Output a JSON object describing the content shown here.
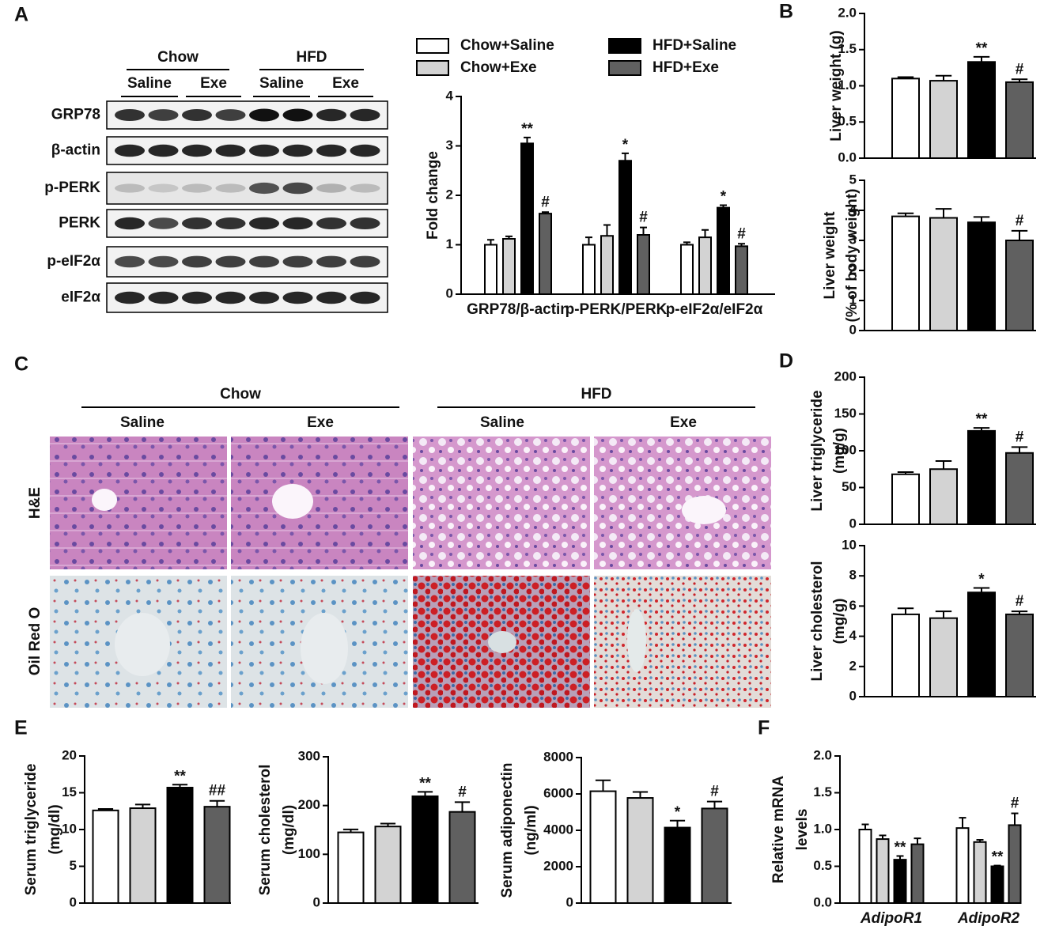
{
  "figure": {
    "panel_labels": [
      "A",
      "B",
      "C",
      "D",
      "E",
      "F"
    ],
    "blot": {
      "groups": [
        "Chow",
        "HFD"
      ],
      "treatments": [
        "Saline",
        "Exe",
        "Saline",
        "Exe"
      ],
      "rows": [
        "GRP78",
        "β-actin",
        "p-PERK",
        "PERK",
        "p-eIF2α",
        "eIF2α"
      ]
    },
    "histology": {
      "groups": [
        "Chow",
        "HFD"
      ],
      "treatments": [
        "Saline",
        "Exe",
        "Saline",
        "Exe"
      ],
      "stains": [
        "H&E",
        "Oil Red O"
      ]
    }
  },
  "chart_data": [
    {
      "type": "bar",
      "ylabel": "Fold change",
      "ylim": [
        0,
        4
      ],
      "yticks": [
        0,
        1,
        2,
        3,
        4
      ],
      "categories": [
        "GRP78/β-actin",
        "p-PERK/PERK",
        "p-eIF2α/eIF2α"
      ],
      "series": [
        {
          "name": "Chow+Saline",
          "color": "#ffffff",
          "values": [
            1.0,
            1.0,
            1.0
          ],
          "errors": [
            0.1,
            0.15,
            0.05
          ]
        },
        {
          "name": "Chow+Exe",
          "color": "#d3d3d3",
          "values": [
            1.12,
            1.18,
            1.15
          ],
          "errors": [
            0.05,
            0.22,
            0.15
          ]
        },
        {
          "name": "HFD+Saline",
          "color": "#000000",
          "values": [
            3.05,
            2.7,
            1.75
          ],
          "errors": [
            0.12,
            0.15,
            0.05
          ],
          "marks": [
            "**",
            "*",
            "*"
          ]
        },
        {
          "name": "HFD+Exe",
          "color": "#606060",
          "values": [
            1.63,
            1.2,
            0.97
          ],
          "errors": [
            0.03,
            0.15,
            0.05
          ],
          "marks": [
            "#",
            "#",
            "#"
          ]
        }
      ]
    },
    {
      "type": "bar",
      "ylabel": "Liver weight (g)",
      "ylim": [
        0,
        2
      ],
      "yticks": [
        {
          "value": 0,
          "label": "0.0"
        },
        {
          "value": 0.5,
          "label": "0.5"
        },
        {
          "value": 1,
          "label": "1.0"
        },
        {
          "value": 1.5,
          "label": "1.5"
        },
        {
          "value": 2,
          "label": "2.0"
        }
      ],
      "categories": [
        null
      ],
      "series": [
        {
          "color": "#ffffff",
          "values": [
            1.1
          ],
          "errors": [
            0.02
          ]
        },
        {
          "color": "#d3d3d3",
          "values": [
            1.07
          ],
          "errors": [
            0.07
          ]
        },
        {
          "color": "#000000",
          "values": [
            1.33
          ],
          "errors": [
            0.07
          ],
          "marks": [
            "**"
          ]
        },
        {
          "color": "#606060",
          "values": [
            1.05
          ],
          "errors": [
            0.04
          ],
          "marks": [
            "#"
          ]
        }
      ]
    },
    {
      "type": "bar",
      "ylabel": [
        "Liver weight",
        "(% of body weight)"
      ],
      "ylim": [
        0,
        5
      ],
      "yticks": [
        0,
        1,
        2,
        3,
        4,
        5
      ],
      "categories": [
        null
      ],
      "series": [
        {
          "color": "#ffffff",
          "values": [
            3.8
          ],
          "errors": [
            0.1
          ]
        },
        {
          "color": "#d3d3d3",
          "values": [
            3.75
          ],
          "errors": [
            0.3
          ]
        },
        {
          "color": "#000000",
          "values": [
            3.6
          ],
          "errors": [
            0.18
          ]
        },
        {
          "color": "#606060",
          "values": [
            3.0
          ],
          "errors": [
            0.32
          ],
          "marks": [
            "#"
          ]
        }
      ]
    },
    {
      "type": "bar",
      "ylabel": [
        "Liver triglyceride",
        "(mg/g)"
      ],
      "ylim": [
        0,
        200
      ],
      "yticks": [
        0,
        50,
        100,
        150,
        200
      ],
      "categories": [
        null
      ],
      "series": [
        {
          "color": "#ffffff",
          "values": [
            68
          ],
          "errors": [
            3
          ]
        },
        {
          "color": "#d3d3d3",
          "values": [
            75
          ],
          "errors": [
            11
          ]
        },
        {
          "color": "#000000",
          "values": [
            127
          ],
          "errors": [
            4
          ],
          "marks": [
            "**"
          ]
        },
        {
          "color": "#606060",
          "values": [
            97
          ],
          "errors": [
            8
          ],
          "marks": [
            "#"
          ]
        }
      ]
    },
    {
      "type": "bar",
      "ylabel": [
        "Liver cholesterol",
        "(mg/g)"
      ],
      "ylim": [
        0,
        10
      ],
      "yticks": [
        0,
        2,
        4,
        6,
        8,
        10
      ],
      "categories": [
        null
      ],
      "series": [
        {
          "color": "#ffffff",
          "values": [
            5.45
          ],
          "errors": [
            0.4
          ]
        },
        {
          "color": "#d3d3d3",
          "values": [
            5.2
          ],
          "errors": [
            0.45
          ]
        },
        {
          "color": "#000000",
          "values": [
            6.9
          ],
          "errors": [
            0.3
          ],
          "marks": [
            "*"
          ]
        },
        {
          "color": "#606060",
          "values": [
            5.45
          ],
          "errors": [
            0.2
          ],
          "marks": [
            "#"
          ]
        }
      ]
    },
    {
      "type": "bar",
      "ylabel": [
        "Serum triglyceride",
        "(mg/dl)"
      ],
      "ylim": [
        0,
        20
      ],
      "yticks": [
        0,
        5,
        10,
        15,
        20
      ],
      "categories": [
        null
      ],
      "series": [
        {
          "color": "#ffffff",
          "values": [
            12.6
          ],
          "errors": [
            0.2
          ]
        },
        {
          "color": "#d3d3d3",
          "values": [
            12.9
          ],
          "errors": [
            0.5
          ]
        },
        {
          "color": "#000000",
          "values": [
            15.7
          ],
          "errors": [
            0.4
          ],
          "marks": [
            "**"
          ]
        },
        {
          "color": "#606060",
          "values": [
            13.1
          ],
          "errors": [
            0.8
          ],
          "marks": [
            "##"
          ]
        }
      ]
    },
    {
      "type": "bar",
      "ylabel": [
        "Serum cholesterol",
        "(mg/dl)"
      ],
      "ylim": [
        0,
        300
      ],
      "yticks": [
        0,
        100,
        200,
        300
      ],
      "categories": [
        null
      ],
      "series": [
        {
          "color": "#ffffff",
          "values": [
            145
          ],
          "errors": [
            6
          ]
        },
        {
          "color": "#d3d3d3",
          "values": [
            157
          ],
          "errors": [
            6
          ]
        },
        {
          "color": "#000000",
          "values": [
            219
          ],
          "errors": [
            9
          ],
          "marks": [
            "**"
          ]
        },
        {
          "color": "#606060",
          "values": [
            187
          ],
          "errors": [
            20
          ],
          "marks": [
            "#"
          ]
        }
      ]
    },
    {
      "type": "bar",
      "ylabel": [
        "Serum adiponectin",
        "(ng/ml)"
      ],
      "ylim": [
        0,
        8000
      ],
      "yticks": [
        0,
        2000,
        4000,
        6000,
        8000
      ],
      "categories": [
        null
      ],
      "series": [
        {
          "color": "#ffffff",
          "values": [
            6150
          ],
          "errors": [
            600
          ]
        },
        {
          "color": "#d3d3d3",
          "values": [
            5780
          ],
          "errors": [
            330
          ]
        },
        {
          "color": "#000000",
          "values": [
            4150
          ],
          "errors": [
            380
          ],
          "marks": [
            "*"
          ]
        },
        {
          "color": "#606060",
          "values": [
            5200
          ],
          "errors": [
            380
          ],
          "marks": [
            "#"
          ]
        }
      ]
    },
    {
      "type": "bar",
      "ylabel": [
        "Relative mRNA",
        "levels"
      ],
      "ylim": [
        0,
        2
      ],
      "yticks": [
        {
          "value": 0,
          "label": "0.0"
        },
        {
          "value": 0.5,
          "label": "0.5"
        },
        {
          "value": 1,
          "label": "1.0"
        },
        {
          "value": 1.5,
          "label": "1.5"
        },
        {
          "value": 2,
          "label": "2.0"
        }
      ],
      "categories": [
        "AdipoR1",
        "AdipoR2"
      ],
      "series": [
        {
          "color": "#ffffff",
          "values": [
            1.0,
            1.02
          ],
          "errors": [
            0.07,
            0.14
          ]
        },
        {
          "color": "#d3d3d3",
          "values": [
            0.87,
            0.83
          ],
          "errors": [
            0.05,
            0.03
          ]
        },
        {
          "color": "#000000",
          "values": [
            0.59,
            0.5
          ],
          "errors": [
            0.05,
            0.01
          ],
          "marks": [
            "**",
            "**"
          ]
        },
        {
          "color": "#606060",
          "values": [
            0.8,
            1.06
          ],
          "errors": [
            0.08,
            0.16
          ],
          "marks": [
            null,
            "#"
          ]
        }
      ]
    }
  ]
}
